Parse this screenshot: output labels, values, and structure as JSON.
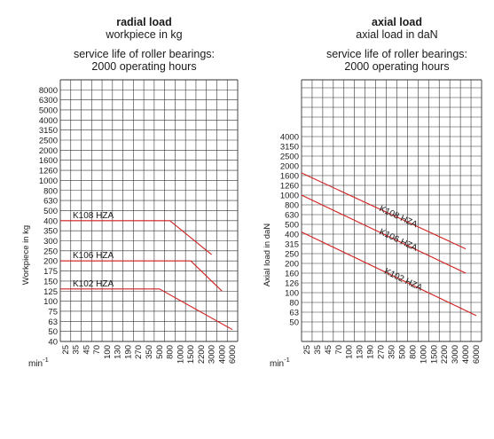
{
  "chart_data": [
    {
      "type": "line",
      "title": "radial load",
      "subtitle": "workpiece in kg",
      "note_line1": "service life of roller bearings:",
      "note_line2": "2000 operating hours",
      "ylabel": "Workpiece in kg",
      "xlabel_unit": "min",
      "xlabel_exp": "-1",
      "y_scale": "log",
      "x_scale": "log",
      "grid": true,
      "x_ticks": [
        "25",
        "35",
        "45",
        "70",
        "100",
        "130",
        "190",
        "270",
        "350",
        "500",
        "800",
        "1000",
        "1500",
        "2200",
        "3000",
        "4000",
        "6000"
      ],
      "y_ticks": [
        "40",
        "50",
        "63",
        "75",
        "100",
        "125",
        "150",
        "175",
        "200",
        "250",
        "300",
        "350",
        "400",
        "500",
        "630",
        "800",
        "1000",
        "1260",
        "1600",
        "2000",
        "2500",
        "3150",
        "4000",
        "5000",
        "6300",
        "8000"
      ],
      "series": [
        {
          "name": "K108 HZA",
          "color": "#d22020",
          "points": [
            [
              25,
              400
            ],
            [
              800,
              400
            ],
            [
              3000,
              230
            ]
          ]
        },
        {
          "name": "K106 HZA",
          "color": "#d22020",
          "points": [
            [
              25,
              200
            ],
            [
              1500,
              200
            ],
            [
              4000,
              125
            ]
          ]
        },
        {
          "name": "K102 HZA",
          "color": "#d22020",
          "points": [
            [
              25,
              130
            ],
            [
              500,
              130
            ],
            [
              6000,
              52
            ]
          ]
        }
      ]
    },
    {
      "type": "line",
      "title": "axial load",
      "subtitle": "axial load in daN",
      "note_line1": "service life of roller bearings:",
      "note_line2": "2000 operating hours",
      "ylabel": "Axial load in daN",
      "xlabel_unit": "min",
      "xlabel_exp": "-1",
      "y_scale": "log",
      "x_scale": "log",
      "grid": true,
      "x_ticks": [
        "25",
        "35",
        "45",
        "70",
        "100",
        "130",
        "190",
        "270",
        "350",
        "500",
        "800",
        "1000",
        "1500",
        "2200",
        "3000",
        "4000",
        "6000"
      ],
      "y_ticks": [
        "50",
        "63",
        "80",
        "100",
        "126",
        "160",
        "200",
        "250",
        "315",
        "400",
        "500",
        "630",
        "800",
        "1000",
        "1260",
        "1600",
        "2000",
        "2500",
        "3150",
        "4000"
      ],
      "series": [
        {
          "name": "K108 HZA",
          "color": "#d22020",
          "points": [
            [
              25,
              1700
            ],
            [
              4000,
              280
            ]
          ]
        },
        {
          "name": "K106 HZA",
          "color": "#d22020",
          "points": [
            [
              25,
              1000
            ],
            [
              4000,
              160
            ]
          ]
        },
        {
          "name": "K102 HZA",
          "color": "#d22020",
          "points": [
            [
              25,
              420
            ],
            [
              6000,
              58
            ]
          ]
        }
      ]
    }
  ]
}
